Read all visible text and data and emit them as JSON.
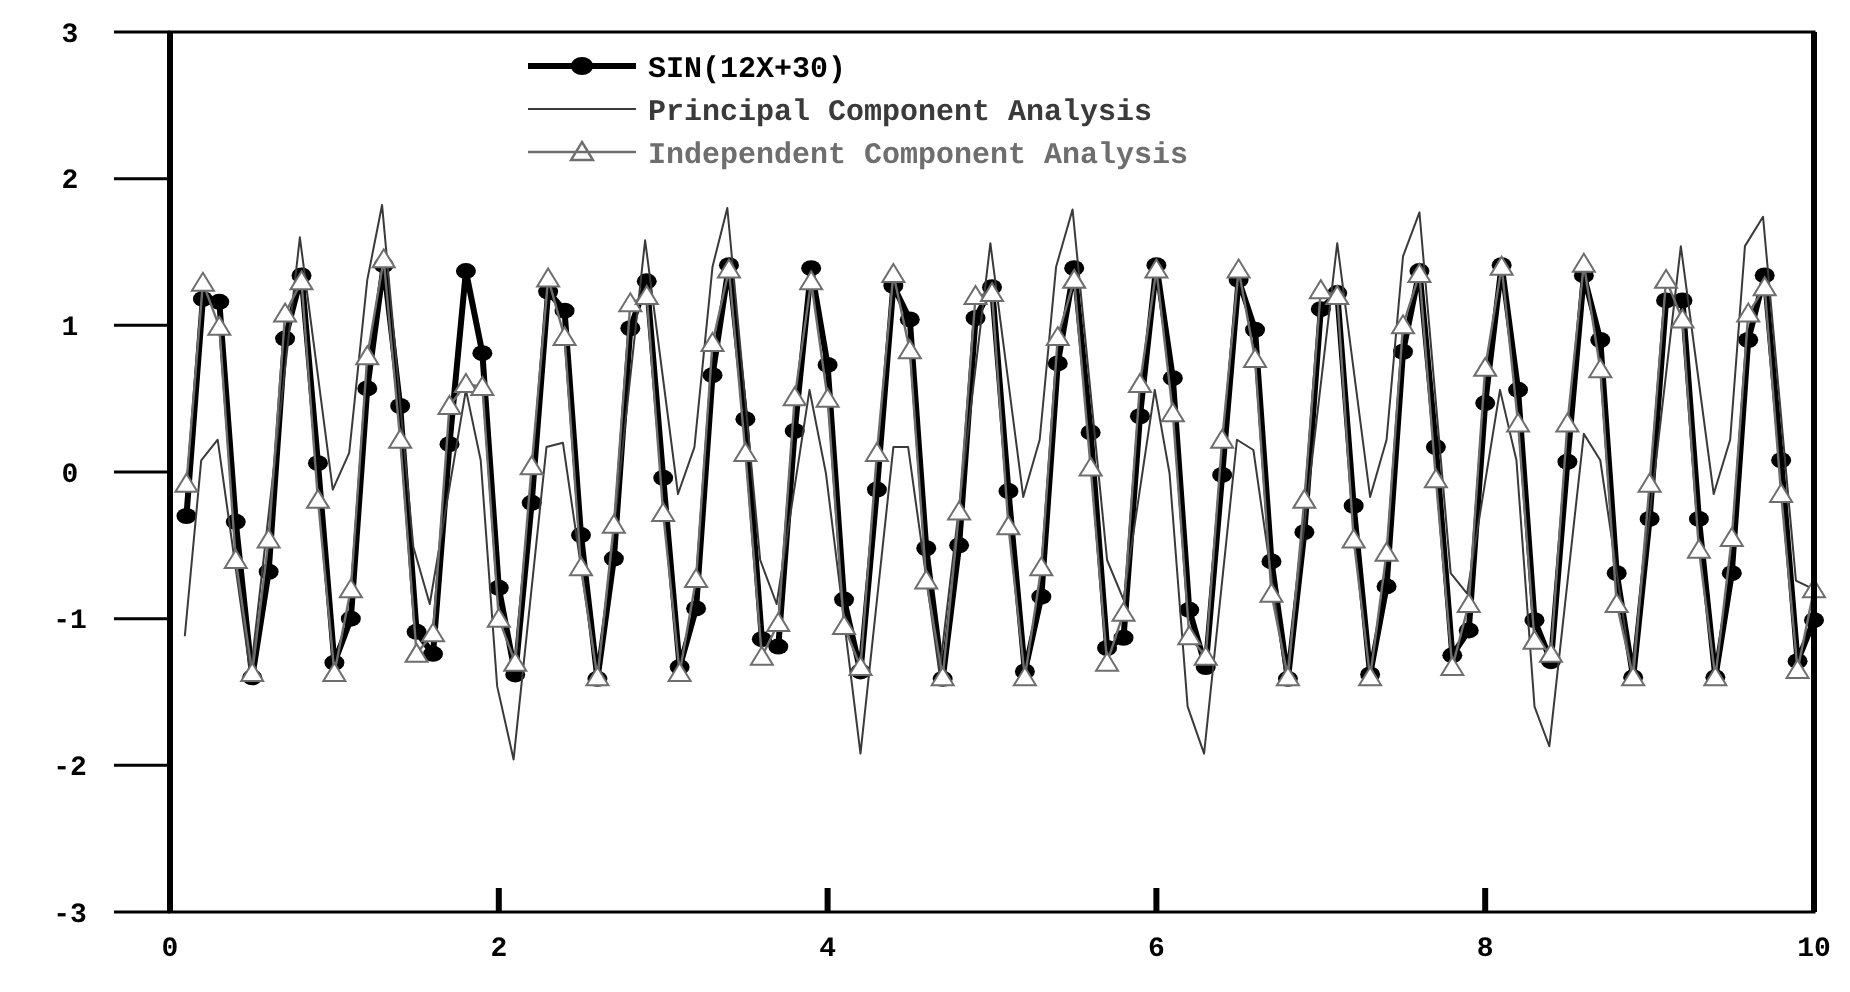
{
  "chart_data": {
    "type": "line",
    "xlim": [
      0,
      10
    ],
    "ylim": [
      -3,
      3
    ],
    "xticks": [
      0,
      2,
      4,
      6,
      8,
      10
    ],
    "yticks": [
      -3,
      -2,
      -1,
      0,
      1,
      2,
      3
    ],
    "grid": false,
    "legend": "top left",
    "x": [
      0.1,
      0.2,
      0.3,
      0.4,
      0.5,
      0.6,
      0.7,
      0.8,
      0.9,
      1.0,
      1.1,
      1.2,
      1.3,
      1.4,
      1.5,
      1.6,
      1.7,
      1.8,
      1.9,
      2.0,
      2.1,
      2.2,
      2.3,
      2.4,
      2.5,
      2.6,
      2.7,
      2.8,
      2.9,
      3.0,
      3.1,
      3.2,
      3.3,
      3.4,
      3.5,
      3.6,
      3.7,
      3.8,
      3.9,
      4.0,
      4.1,
      4.2,
      4.3,
      4.4,
      4.5,
      4.6,
      4.7,
      4.8,
      4.9,
      5.0,
      5.1,
      5.2,
      5.3,
      5.4,
      5.5,
      5.6,
      5.7,
      5.8,
      5.9,
      6.0,
      6.1,
      6.2,
      6.3,
      6.4,
      6.5,
      6.6,
      6.7,
      6.8,
      6.9,
      7.0,
      7.1,
      7.2,
      7.3,
      7.4,
      7.5,
      7.6,
      7.7,
      7.8,
      7.9,
      8.0,
      8.1,
      8.2,
      8.3,
      8.4,
      8.5,
      8.6,
      8.7,
      8.8,
      8.9,
      9.0,
      9.1,
      9.2,
      9.3,
      9.4,
      9.5,
      9.6,
      9.7,
      9.8,
      9.9,
      10.0
    ],
    "series": [
      {
        "name": "SIN(12X+30)",
        "color": "#000000",
        "marker": "circle",
        "values": [
          -0.3,
          1.18,
          1.16,
          -0.34,
          -1.4,
          -0.68,
          0.91,
          1.34,
          0.06,
          -1.3,
          -1.0,
          0.57,
          1.41,
          0.45,
          -1.09,
          -1.24,
          0.19,
          1.37,
          0.81,
          -0.79,
          -1.38,
          -0.21,
          1.23,
          1.1,
          -0.43,
          -1.41,
          -0.59,
          0.98,
          1.3,
          -0.04,
          -1.33,
          -0.93,
          0.66,
          1.41,
          0.36,
          -1.14,
          -1.19,
          0.28,
          1.39,
          0.73,
          -0.87,
          -1.36,
          -0.12,
          1.27,
          1.04,
          -0.52,
          -1.41,
          -0.5,
          1.05,
          1.26,
          -0.13,
          -1.36,
          -0.85,
          0.74,
          1.39,
          0.27,
          -1.2,
          -1.13,
          0.38,
          1.41,
          0.64,
          -0.94,
          -1.33,
          -0.02,
          1.31,
          0.97,
          -0.61,
          -1.41,
          -0.41,
          1.11,
          1.22,
          -0.23,
          -1.38,
          -0.78,
          0.82,
          1.37,
          0.17,
          -1.25,
          -1.08,
          0.47,
          1.41,
          0.56,
          -1.01,
          -1.29,
          0.07,
          1.34,
          0.9,
          -0.69,
          -1.4,
          -0.32,
          1.17,
          1.17,
          -0.32,
          -1.4,
          -0.69,
          0.9,
          1.34,
          0.08,
          -1.29,
          -1.01
        ]
      },
      {
        "name": "Principal Component Analysis",
        "color": "#3a3a3a",
        "marker": "none",
        "x": [
          0.09,
          0.19,
          0.29,
          0.49,
          0.79,
          0.99,
          1.09,
          1.2,
          1.29,
          1.48,
          1.58,
          1.8,
          1.89,
          1.99,
          2.09,
          2.29,
          2.39,
          2.6,
          2.89,
          3.09,
          3.19,
          3.3,
          3.39,
          3.59,
          3.69,
          3.89,
          3.99,
          4.2,
          4.4,
          4.49,
          4.68,
          4.99,
          5.19,
          5.29,
          5.39,
          5.49,
          5.7,
          5.8,
          5.99,
          6.08,
          6.19,
          6.29,
          6.49,
          6.59,
          6.79,
          7.1,
          7.3,
          7.4,
          7.5,
          7.6,
          7.79,
          7.89,
          8.09,
          8.19,
          8.3,
          8.39,
          8.6,
          8.7,
          8.89,
          9.19,
          9.39,
          9.49,
          9.58,
          9.69,
          9.89,
          10.0
        ],
        "values": [
          -1.12,
          0.08,
          0.22,
          -1.38,
          1.6,
          -0.12,
          0.13,
          1.31,
          1.82,
          -0.51,
          -0.9,
          0.56,
          0.08,
          -1.46,
          -1.96,
          0.17,
          0.2,
          -1.42,
          1.58,
          -0.15,
          0.17,
          1.4,
          1.8,
          -0.6,
          -0.9,
          0.56,
          -0.01,
          -1.92,
          0.17,
          0.17,
          -1.37,
          1.56,
          -0.17,
          0.22,
          1.4,
          1.79,
          -0.6,
          -0.87,
          0.56,
          -0.01,
          -1.6,
          -1.92,
          0.22,
          0.15,
          -1.42,
          1.56,
          -0.17,
          0.22,
          1.47,
          1.77,
          -0.69,
          -0.83,
          0.56,
          0.08,
          -1.6,
          -1.87,
          0.26,
          0.08,
          -1.37,
          1.54,
          -0.15,
          0.22,
          1.54,
          1.74,
          -0.74,
          -0.8
        ]
      },
      {
        "name": "Independent Component Analysis",
        "color": "#6e6e6e",
        "marker": "triangle",
        "values": [
          -0.08,
          1.29,
          0.99,
          -0.6,
          -1.37,
          -0.46,
          1.08,
          1.3,
          -0.19,
          -1.37,
          -0.8,
          0.79,
          1.45,
          0.22,
          -1.24,
          -1.1,
          0.45,
          0.6,
          0.58,
          -1.0,
          -1.3,
          0.04,
          1.32,
          0.92,
          -0.65,
          -1.4,
          -0.36,
          1.15,
          1.2,
          -0.28,
          -1.37,
          -0.73,
          0.88,
          1.38,
          0.13,
          -1.26,
          -1.03,
          0.51,
          1.3,
          0.5,
          -1.05,
          -1.33,
          0.13,
          1.35,
          0.83,
          -0.74,
          -1.4,
          -0.27,
          1.2,
          1.22,
          -0.37,
          -1.4,
          -0.65,
          0.92,
          1.31,
          0.03,
          -1.3,
          -0.96,
          0.6,
          1.38,
          0.4,
          -1.12,
          -1.26,
          0.22,
          1.38,
          0.77,
          -0.83,
          -1.4,
          -0.19,
          1.24,
          1.2,
          -0.46,
          -1.4,
          -0.55,
          1.0,
          1.35,
          -0.05,
          -1.33,
          -0.9,
          0.71,
          1.4,
          0.33,
          -1.15,
          -1.24,
          0.33,
          1.42,
          0.7,
          -0.9,
          -1.4,
          -0.08,
          1.31,
          1.04,
          -0.53,
          -1.4,
          -0.45,
          1.08,
          1.26,
          -0.15,
          -1.35,
          -0.8
        ]
      }
    ]
  }
}
